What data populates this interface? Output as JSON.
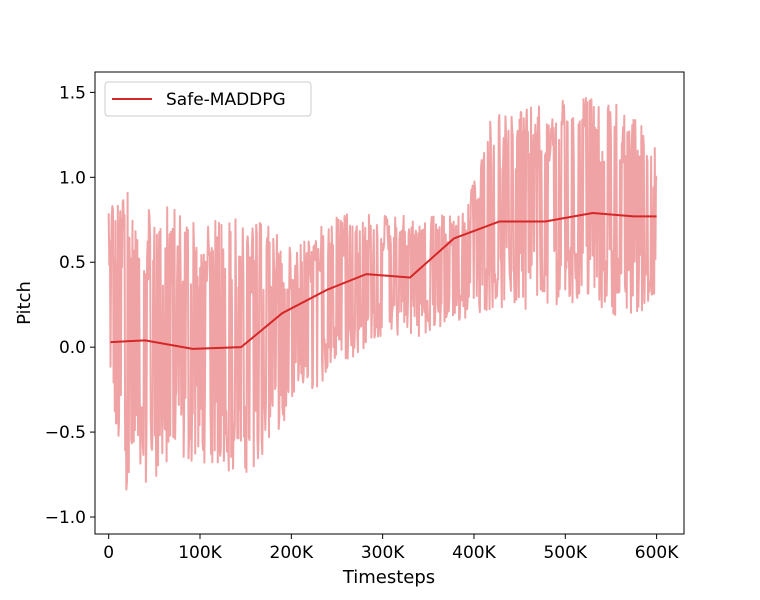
{
  "chart_data": {
    "type": "line",
    "xlabel": "Timesteps",
    "ylabel": "Pitch",
    "xlim": [
      -15000,
      630000
    ],
    "ylim": [
      -1.1,
      1.62
    ],
    "xticks": [
      0,
      100000,
      200000,
      300000,
      400000,
      500000,
      600000
    ],
    "xtick_labels": [
      "0",
      "100K",
      "200K",
      "300K",
      "400K",
      "500K",
      "600K"
    ],
    "yticks": [
      -1.0,
      -0.5,
      0.0,
      0.5,
      1.0,
      1.5
    ],
    "ytick_labels": [
      "−1.0",
      "−0.5",
      "0.0",
      "0.5",
      "1.0",
      "1.5"
    ],
    "grid": false,
    "legend": {
      "position": "top-left",
      "entries": [
        "Safe-MADDPG"
      ]
    },
    "colors": {
      "smoothed": "#d62728",
      "raw": "#f0a3a4"
    },
    "series": [
      {
        "name": "Safe-MADDPG",
        "kind": "smoothed",
        "x": [
          2000,
          40000,
          92000,
          145000,
          190000,
          240000,
          282000,
          330000,
          378000,
          428000,
          478000,
          530000,
          575000,
          600000
        ],
        "values": [
          0.03,
          0.04,
          -0.01,
          0.0,
          0.2,
          0.34,
          0.43,
          0.41,
          0.64,
          0.74,
          0.74,
          0.79,
          0.77,
          0.77
        ]
      },
      {
        "kind": "raw",
        "band_x": [
          0,
          20000,
          50000,
          100000,
          140000,
          175000,
          200000,
          250000,
          300000,
          350000,
          390000,
          420000,
          470000,
          520000,
          560000,
          600000
        ],
        "band_low": [
          -0.5,
          -0.9,
          -0.8,
          -0.7,
          -0.8,
          -0.7,
          -0.4,
          -0.15,
          0.05,
          0.05,
          0.15,
          0.2,
          0.2,
          0.25,
          0.15,
          0.2
        ],
        "band_high": [
          0.95,
          0.95,
          0.9,
          0.8,
          0.8,
          0.75,
          0.6,
          0.8,
          0.8,
          0.8,
          0.8,
          1.4,
          1.45,
          1.5,
          1.45,
          1.25
        ],
        "count": 900
      }
    ]
  }
}
